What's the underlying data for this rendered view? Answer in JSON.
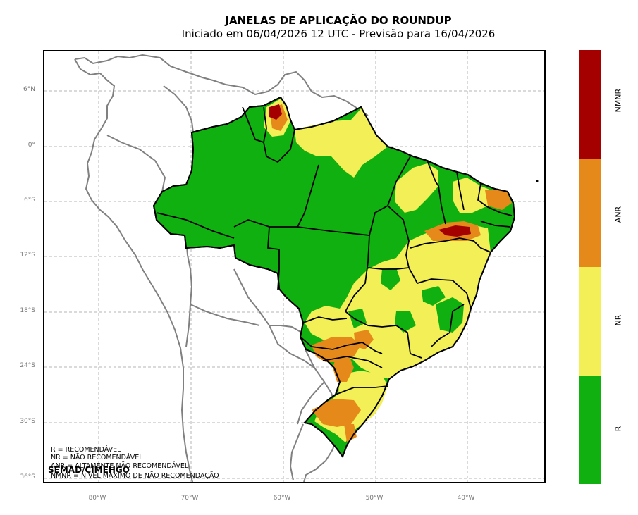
{
  "title": "JANELAS DE APLICAÇÃO DO ROUNDUP",
  "subtitle": "Iniciado em 06/04/2026 12 UTC - Previsão para 16/04/2026",
  "lat_ticks": [
    "6°N",
    "0°",
    "6°S",
    "12°S",
    "18°S",
    "24°S",
    "30°S",
    "36°S"
  ],
  "lon_ticks": [
    "80°W",
    "70°W",
    "60°W",
    "50°W",
    "40°W"
  ],
  "legend_lines": [
    "R = RECOMENDÁVEL",
    "NR = NÃO RECOMENDÁVEL",
    "ANR = ALTAMENTE NÃO RECOMENDÁVEL",
    "NMNR = NÍVEL MÁXIMO DE NÃO RECOMENDAÇÃO"
  ],
  "credit": "SEMAD/CIMEHGO",
  "colorbar": [
    {
      "label": "NMNR",
      "color": "#a50000"
    },
    {
      "label": "ANR",
      "color": "#e58a1a"
    },
    {
      "label": "NR",
      "color": "#f3ef57"
    },
    {
      "label": "R",
      "color": "#10b010"
    }
  ]
}
